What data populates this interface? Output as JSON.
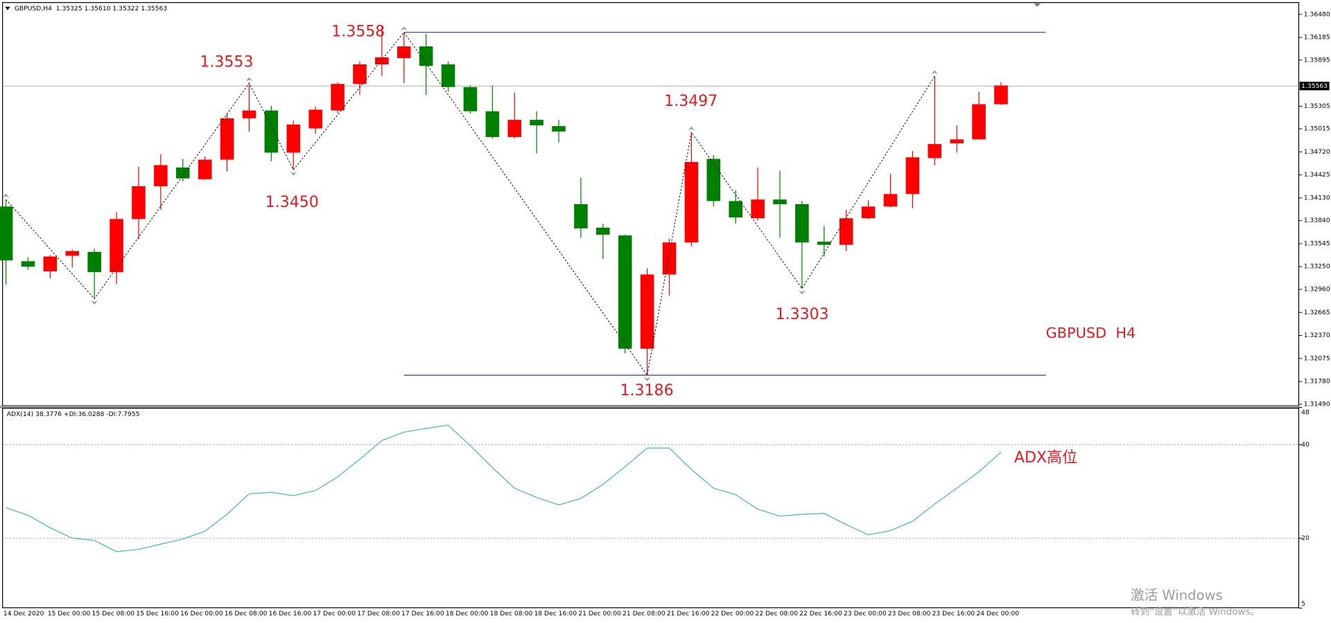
{
  "chart_data": [
    {
      "type": "candlestick",
      "header": "GBPUSD,H4  1.35325 1.35610 1.35322 1.35563",
      "categories": [
        "14 Dec 2020",
        null,
        "15 Dec 00:00",
        null,
        "15 Dec 08:00",
        null,
        "15 Dec 16:00",
        null,
        "16 Dec 00:00",
        null,
        "16 Dec 08:00",
        null,
        "16 Dec 16:00",
        null,
        "17 Dec 00:00",
        null,
        "17 Dec 08:00",
        null,
        "17 Dec 16:00",
        null,
        "18 Dec 00:00",
        null,
        "18 Dec 08:00",
        null,
        "18 Dec 16:00",
        null,
        "21 Dec 00:00",
        null,
        "21 Dec 08:00",
        null,
        "21 Dec 16:00",
        null,
        "22 Dec 00:00",
        null,
        "22 Dec 08:00",
        null,
        "22 Dec 16:00",
        null,
        "23 Dec 00:00",
        null,
        "23 Dec 08:00",
        null,
        "23 Dec 16:00",
        null,
        "24 Dec 00:00",
        null
      ],
      "open": [
        1.3402,
        1.3332,
        1.3319,
        1.3339,
        1.3344,
        1.3318,
        1.3386,
        1.3428,
        1.3452,
        1.3437,
        1.3462,
        1.3515,
        1.3525,
        1.3471,
        1.3502,
        1.3525,
        1.3559,
        1.3584,
        1.3592,
        1.3607,
        1.3584,
        1.3555,
        1.3524,
        1.3491,
        1.3513,
        1.3505,
        1.3405,
        1.3375,
        1.3365,
        1.322,
        1.3315,
        1.3356,
        1.3463,
        1.3409,
        1.3387,
        1.3411,
        1.3405,
        1.3357,
        1.3353,
        1.3387,
        1.3402,
        1.3418,
        1.3464,
        1.3483,
        1.3488,
        1.3533
      ],
      "high": [
        1.3411,
        1.3337,
        1.334,
        1.3347,
        1.3348,
        1.3395,
        1.3453,
        1.3469,
        1.3463,
        1.3466,
        1.3521,
        1.356,
        1.3531,
        1.3512,
        1.353,
        1.3561,
        1.3588,
        1.3634,
        1.3625,
        1.3623,
        1.3588,
        1.3557,
        1.3557,
        1.3548,
        1.3524,
        1.3513,
        1.3439,
        1.338,
        1.3366,
        1.3323,
        1.3361,
        1.3497,
        1.3468,
        1.3423,
        1.3452,
        1.3448,
        1.3409,
        1.3377,
        1.3398,
        1.341,
        1.3444,
        1.3473,
        1.3569,
        1.3506,
        1.3549,
        1.3561
      ],
      "low": [
        1.3302,
        1.3321,
        1.331,
        1.3324,
        1.3284,
        1.3303,
        1.336,
        1.3398,
        1.3434,
        1.3436,
        1.3447,
        1.3498,
        1.346,
        1.3449,
        1.3495,
        1.3522,
        1.3545,
        1.3569,
        1.356,
        1.3545,
        1.3549,
        1.3521,
        1.3489,
        1.3489,
        1.347,
        1.3484,
        1.3362,
        1.3335,
        1.3214,
        1.3186,
        1.3288,
        1.3351,
        1.3402,
        1.338,
        1.3384,
        1.3362,
        1.3297,
        1.3338,
        1.3345,
        1.3386,
        1.3401,
        1.34,
        1.3455,
        1.3471,
        1.3488,
        1.3532
      ],
      "close": [
        1.3333,
        1.3325,
        1.3338,
        1.3345,
        1.3318,
        1.3386,
        1.3428,
        1.3455,
        1.3438,
        1.3462,
        1.3515,
        1.3525,
        1.3471,
        1.3507,
        1.3526,
        1.3559,
        1.3584,
        1.3593,
        1.3607,
        1.3582,
        1.3555,
        1.3524,
        1.3491,
        1.3513,
        1.3506,
        1.3498,
        1.3374,
        1.3366,
        1.322,
        1.3315,
        1.3356,
        1.3459,
        1.3409,
        1.3388,
        1.3411,
        1.3405,
        1.3356,
        1.3353,
        1.3387,
        1.3402,
        1.3418,
        1.3465,
        1.3482,
        1.3488,
        1.3533,
        1.3557
      ],
      "up_color": "#ff0000",
      "down_color": "#008000",
      "ylim": [
        1.3147,
        1.3661
      ],
      "yticks": [
        {
          "value": 1.3648,
          "label": "1.36480"
        },
        {
          "value": 1.36185,
          "label": "1.36185"
        },
        {
          "value": 1.35895,
          "label": "1.35895"
        },
        {
          "value": 1.35305,
          "label": "1.35305"
        },
        {
          "value": 1.35015,
          "label": "1.35015"
        },
        {
          "value": 1.3472,
          "label": "1.34720"
        },
        {
          "value": 1.34425,
          "label": "1.34425"
        },
        {
          "value": 1.3413,
          "label": "1.34130"
        },
        {
          "value": 1.3384,
          "label": "1.33840"
        },
        {
          "value": 1.33545,
          "label": "1.33545"
        },
        {
          "value": 1.3325,
          "label": "1.33250"
        },
        {
          "value": 1.3296,
          "label": "1.32960"
        },
        {
          "value": 1.32665,
          "label": "1.32665"
        },
        {
          "value": 1.3237,
          "label": "1.32370"
        },
        {
          "value": 1.32075,
          "label": "1.32075"
        },
        {
          "value": 1.3178,
          "label": "1.31780"
        },
        {
          "value": 1.3149,
          "label": "1.31490"
        }
      ],
      "last_price": {
        "value": 1.35563,
        "label": "1.35563"
      },
      "levels": [
        1.3625,
        1.3186
      ],
      "level_color": "#1c1ca0",
      "zigzag": {
        "indices": [
          0,
          4,
          11,
          13,
          18,
          29,
          31,
          36,
          42
        ],
        "values": [
          1.3411,
          1.3284,
          1.356,
          1.3449,
          1.3625,
          1.3186,
          1.3497,
          1.3297,
          1.3569
        ]
      },
      "annotations": [
        "1.3553",
        "1.3558",
        "1.3450",
        "1.3497",
        "1.3303",
        "1.3186",
        "GBPUSD  H4"
      ],
      "annotation_color": "#e8191f"
    },
    {
      "type": "line",
      "title": "ADX(14) 38.3776 +DI:36.0288 -DI:7.7955",
      "values": [
        26.5,
        24.9,
        22.2,
        20.0,
        19.5,
        17.1,
        17.6,
        18.7,
        19.8,
        21.5,
        25.1,
        29.5,
        29.8,
        29.1,
        30.2,
        33.1,
        36.9,
        40.9,
        42.7,
        43.5,
        44.2,
        39.8,
        35.1,
        30.7,
        28.7,
        27.1,
        28.5,
        31.5,
        35.3,
        39.3,
        39.3,
        34.7,
        30.7,
        29.3,
        26.2,
        24.7,
        25.1,
        25.3,
        22.9,
        20.7,
        21.6,
        23.6,
        27.3,
        30.7,
        34.2,
        38.4
      ],
      "color": "#47b3c4",
      "ylim": [
        5,
        48
      ],
      "yticks": [
        5,
        20,
        40,
        48
      ],
      "levels": [
        20,
        40
      ],
      "annotation": "ADX高位",
      "annotation_color": "#e8191f"
    }
  ],
  "watermark": {
    "line1": "激活 Windows",
    "line2": "转到“设置”以激活 Windows。"
  }
}
